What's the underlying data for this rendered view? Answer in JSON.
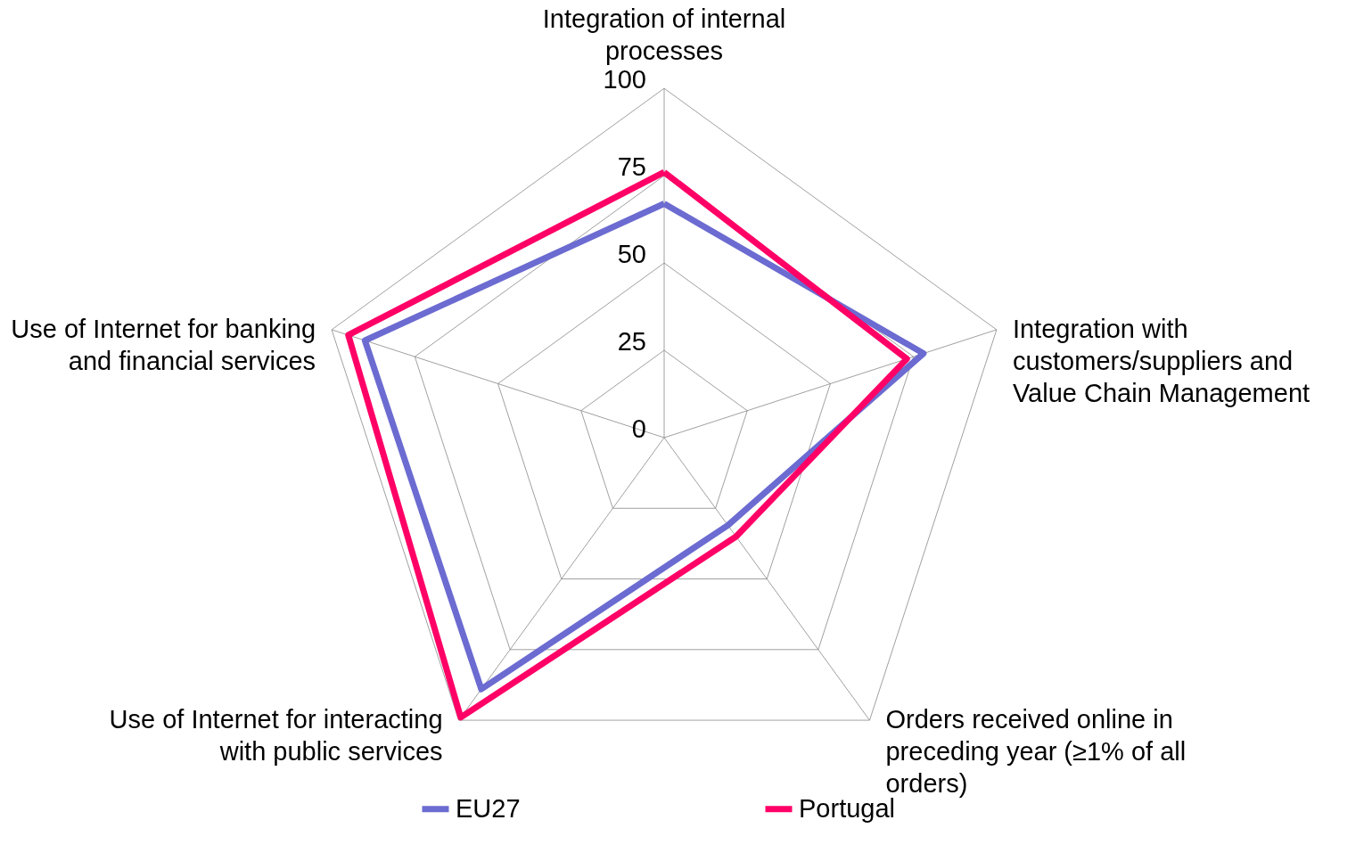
{
  "chart_data": {
    "type": "radar",
    "categories": [
      "Integration of internal processes",
      "Integration with customers/suppliers and Value Chain Management",
      "Orders received online in preceding year (≥1% of all orders)",
      "Use of Internet for interacting with public services",
      "Use of Internet for banking and financial services"
    ],
    "series": [
      {
        "name": "EU27",
        "color": "#6b6bd1",
        "values": [
          67,
          78,
          31,
          89,
          90
        ]
      },
      {
        "name": "Portugal",
        "color": "#ff0066",
        "values": [
          76,
          73,
          35,
          99,
          95
        ]
      }
    ],
    "ylim": [
      0,
      100
    ],
    "yticks": [
      0,
      25,
      50,
      75,
      100
    ],
    "grid": true,
    "legend": "bottom",
    "marker": "none",
    "line_style": "solid"
  }
}
